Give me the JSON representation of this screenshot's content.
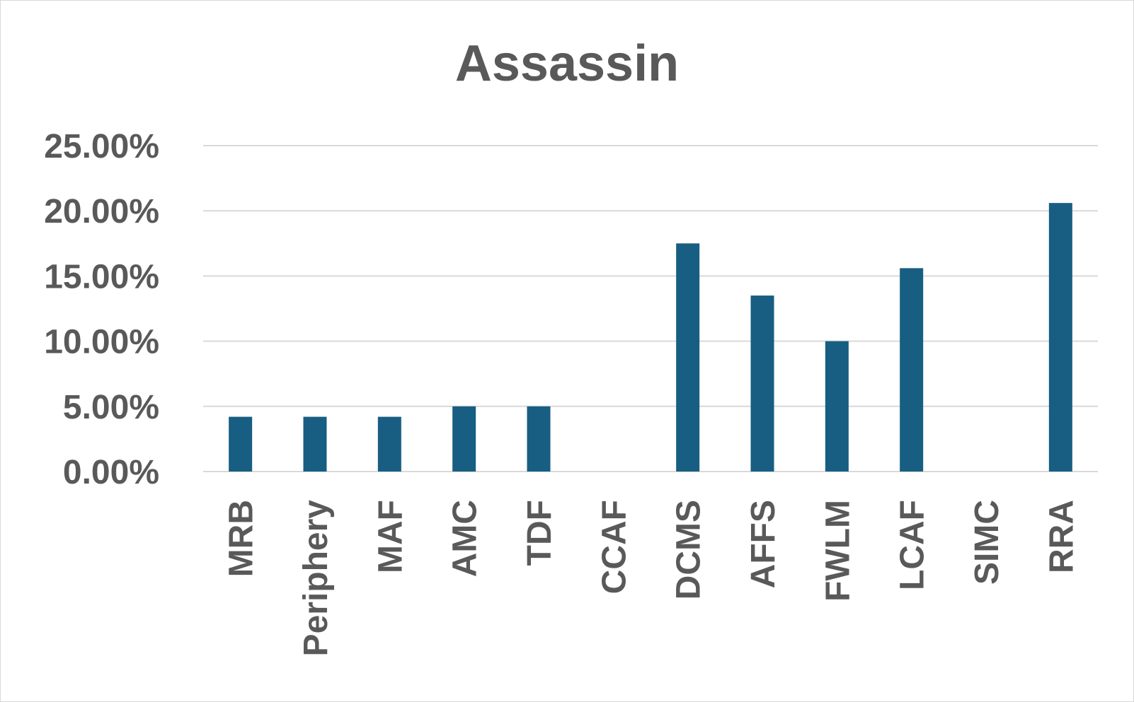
{
  "chart_data": {
    "type": "bar",
    "title": "Assassin",
    "xlabel": "",
    "ylabel": "",
    "categories": [
      "MRB",
      "Periphery",
      "MAF",
      "AMC",
      "TDF",
      "CCAF",
      "DCMS",
      "AFFS",
      "FWLM",
      "LCAF",
      "SIMC",
      "RRA"
    ],
    "values": [
      4.2,
      4.2,
      4.2,
      5.0,
      5.0,
      0,
      17.5,
      13.5,
      10.0,
      15.6,
      0,
      20.6
    ],
    "value_format": "percent",
    "ylim": [
      0,
      25
    ],
    "yticks": [
      0,
      5,
      10,
      15,
      20,
      25
    ],
    "ytick_labels": [
      "0.00%",
      "5.00%",
      "10.00%",
      "15.00%",
      "20.00%",
      "25.00%"
    ],
    "grid": true,
    "legend": "none",
    "bar_color": "#175e82"
  }
}
